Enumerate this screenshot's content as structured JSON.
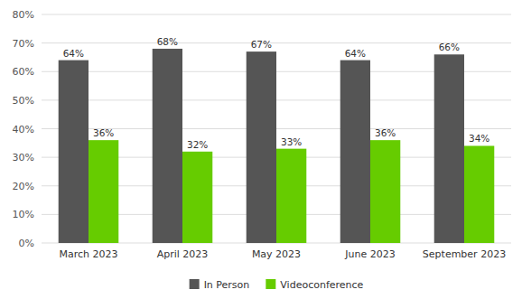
{
  "chart_data": {
    "type": "bar",
    "categories": [
      "March 2023",
      "April 2023",
      "May 2023",
      "June 2023",
      "September 2023"
    ],
    "series": [
      {
        "name": "In Person",
        "color": "#555555",
        "values": [
          64,
          68,
          67,
          64,
          66
        ],
        "value_labels": [
          "64%",
          "68%",
          "67%",
          "64%",
          "66%"
        ]
      },
      {
        "name": "Videoconference",
        "color": "#66cc00",
        "values": [
          36,
          32,
          33,
          36,
          34
        ],
        "value_labels": [
          "36%",
          "32%",
          "33%",
          "36%",
          "34%"
        ]
      }
    ],
    "ylim": [
      0,
      80
    ],
    "yticks": [
      {
        "value": 0,
        "label": "0%"
      },
      {
        "value": 10,
        "label": "10%"
      },
      {
        "value": 20,
        "label": "20%"
      },
      {
        "value": 30,
        "label": "30%"
      },
      {
        "value": 40,
        "label": "40%"
      },
      {
        "value": 50,
        "label": "50%"
      },
      {
        "value": 60,
        "label": "60%"
      },
      {
        "value": 70,
        "label": "70%"
      },
      {
        "value": 80,
        "label": "80%"
      }
    ],
    "grid": true,
    "data_labels": true,
    "legend": "bottom"
  }
}
